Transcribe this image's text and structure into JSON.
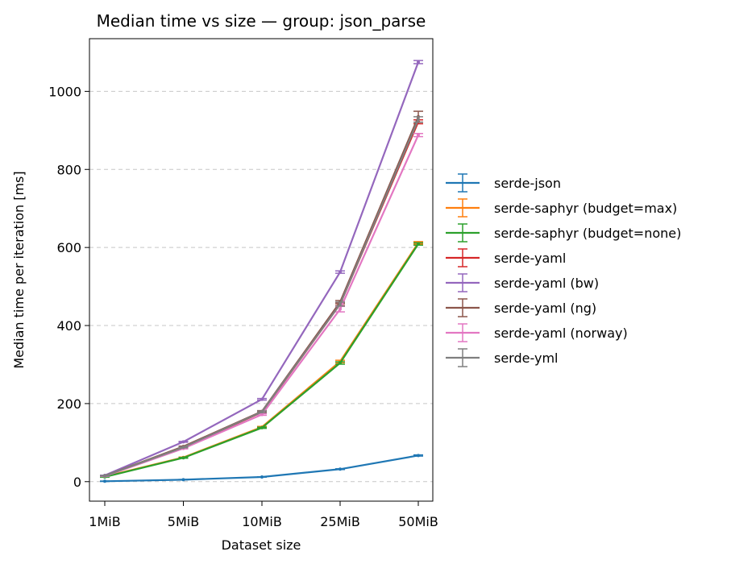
{
  "chart_data": {
    "type": "line",
    "title": "Median time vs size — group: json_parse",
    "xlabel": "Dataset size",
    "ylabel": "Median time per iteration [ms]",
    "categories": [
      "1MiB",
      "5MiB",
      "10MiB",
      "25MiB",
      "50MiB"
    ],
    "ylim": [
      -50,
      1135
    ],
    "yticks": [
      0,
      200,
      400,
      600,
      800,
      1000
    ],
    "grid": "y-dashed",
    "legend_position": "outside-right",
    "series": [
      {
        "name": "serde-json",
        "color": "#1f77b4",
        "values": [
          1,
          5,
          12,
          32,
          67
        ],
        "errors": [
          0.5,
          0.5,
          0.5,
          1,
          1.5
        ]
      },
      {
        "name": "serde-saphyr (budget=max)",
        "color": "#ff7f0e",
        "values": [
          13,
          62,
          140,
          308,
          612
        ],
        "errors": [
          0.5,
          1,
          1.5,
          3,
          3
        ]
      },
      {
        "name": "serde-saphyr (budget=none)",
        "color": "#2ca02c",
        "values": [
          12,
          61,
          138,
          304,
          609
        ],
        "errors": [
          0.5,
          1,
          1.5,
          3,
          3
        ]
      },
      {
        "name": "serde-yaml",
        "color": "#d62728",
        "values": [
          15,
          87,
          178,
          455,
          922
        ],
        "errors": [
          0.5,
          1,
          2,
          4,
          5
        ]
      },
      {
        "name": "serde-yaml (bw)",
        "color": "#9467bd",
        "values": [
          16,
          102,
          211,
          537,
          1075
        ],
        "errors": [
          0.5,
          1,
          2,
          3,
          4
        ]
      },
      {
        "name": "serde-yaml (ng)",
        "color": "#8c564b",
        "values": [
          15,
          90,
          180,
          460,
          935
        ],
        "errors": [
          0.5,
          1,
          2,
          4,
          14
        ]
      },
      {
        "name": "serde-yaml (norway)",
        "color": "#e377c2",
        "values": [
          14,
          85,
          172,
          442,
          888
        ],
        "errors": [
          0.5,
          1,
          2,
          7,
          4
        ]
      },
      {
        "name": "serde-yml",
        "color": "#7f7f7f",
        "values": [
          15,
          88,
          179,
          455,
          928
        ],
        "errors": [
          0.5,
          1,
          2,
          5,
          7
        ]
      }
    ]
  }
}
